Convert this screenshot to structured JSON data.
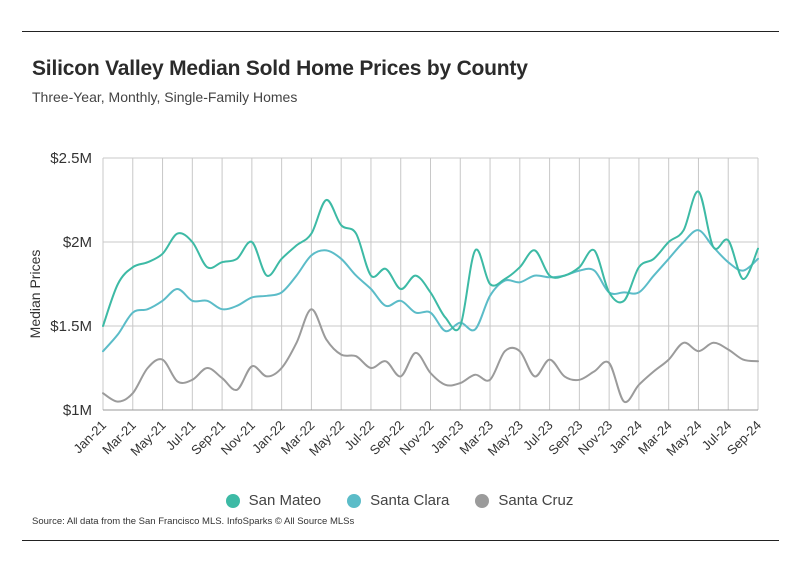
{
  "header": {
    "title": "Silicon Valley Median Sold Home Prices by County",
    "subtitle": "Three-Year, Monthly, Single-Family Homes"
  },
  "footer": {
    "source": "Source:  All data from the San Francisco MLS. InfoSparks © All Source MLSs"
  },
  "chart_data": {
    "type": "line",
    "title": "Silicon Valley Median Sold Home Prices by County",
    "subtitle": "Three-Year, Monthly, Single-Family Homes",
    "xlabel": "",
    "ylabel": "Median Prices",
    "ylim": [
      1.0,
      2.5
    ],
    "yticks": [
      {
        "value": 1.0,
        "label": "$1M"
      },
      {
        "value": 1.5,
        "label": "$1.5M"
      },
      {
        "value": 2.0,
        "label": "$2M"
      },
      {
        "value": 2.5,
        "label": "$2.5M"
      }
    ],
    "grid": true,
    "legend_position": "bottom",
    "x_labels": [
      "Jan-21",
      "Mar-21",
      "May-21",
      "Jul-21",
      "Sep-21",
      "Nov-21",
      "Jan-22",
      "Mar-22",
      "May-22",
      "Jul-22",
      "Sep-22",
      "Nov-22",
      "Jan-23",
      "Mar-23",
      "May-23",
      "Jul-23",
      "Sep-23",
      "Nov-23",
      "Jan-24",
      "Mar-24",
      "May-24",
      "Jul-24",
      "Sep-24"
    ],
    "x": [
      "Jan-21",
      "Feb-21",
      "Mar-21",
      "Apr-21",
      "May-21",
      "Jun-21",
      "Jul-21",
      "Aug-21",
      "Sep-21",
      "Oct-21",
      "Nov-21",
      "Dec-21",
      "Jan-22",
      "Feb-22",
      "Mar-22",
      "Apr-22",
      "May-22",
      "Jun-22",
      "Jul-22",
      "Aug-22",
      "Sep-22",
      "Oct-22",
      "Nov-22",
      "Dec-22",
      "Jan-23",
      "Feb-23",
      "Mar-23",
      "Apr-23",
      "May-23",
      "Jun-23",
      "Jul-23",
      "Aug-23",
      "Sep-23",
      "Oct-23",
      "Nov-23",
      "Dec-23",
      "Jan-24",
      "Feb-24",
      "Mar-24",
      "Apr-24",
      "May-24",
      "Jun-24",
      "Jul-24",
      "Aug-24",
      "Sep-24"
    ],
    "series": [
      {
        "name": "San Mateo",
        "color": "#3dbaa5",
        "values": [
          1.5,
          1.75,
          1.85,
          1.88,
          1.93,
          2.05,
          2.0,
          1.85,
          1.88,
          1.9,
          2.0,
          1.8,
          1.9,
          1.98,
          2.05,
          2.25,
          2.1,
          2.05,
          1.8,
          1.84,
          1.72,
          1.8,
          1.7,
          1.55,
          1.5,
          1.95,
          1.75,
          1.78,
          1.85,
          1.95,
          1.8,
          1.8,
          1.85,
          1.95,
          1.7,
          1.65,
          1.85,
          1.9,
          2.0,
          2.07,
          2.3,
          1.97,
          2.01,
          1.78,
          1.96
        ]
      },
      {
        "name": "Santa Clara",
        "color": "#5bbcc8",
        "values": [
          1.35,
          1.45,
          1.58,
          1.6,
          1.65,
          1.72,
          1.65,
          1.65,
          1.6,
          1.62,
          1.67,
          1.68,
          1.7,
          1.8,
          1.92,
          1.95,
          1.9,
          1.8,
          1.72,
          1.62,
          1.65,
          1.58,
          1.58,
          1.47,
          1.52,
          1.48,
          1.68,
          1.77,
          1.76,
          1.8,
          1.79,
          1.8,
          1.83,
          1.83,
          1.7,
          1.7,
          1.7,
          1.8,
          1.9,
          2.0,
          2.07,
          1.97,
          1.88,
          1.83,
          1.9
        ]
      },
      {
        "name": "Santa Cruz",
        "color": "#9b9b9b",
        "values": [
          1.1,
          1.05,
          1.1,
          1.25,
          1.3,
          1.17,
          1.18,
          1.25,
          1.19,
          1.12,
          1.26,
          1.2,
          1.25,
          1.4,
          1.6,
          1.42,
          1.33,
          1.32,
          1.25,
          1.29,
          1.2,
          1.34,
          1.22,
          1.15,
          1.16,
          1.21,
          1.18,
          1.35,
          1.35,
          1.2,
          1.3,
          1.2,
          1.18,
          1.23,
          1.28,
          1.05,
          1.15,
          1.23,
          1.3,
          1.4,
          1.35,
          1.4,
          1.36,
          1.3,
          1.29
        ]
      }
    ]
  }
}
